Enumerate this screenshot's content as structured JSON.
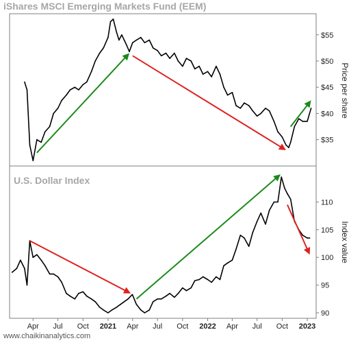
{
  "chart_data": [
    {
      "type": "line",
      "title": "iShares MSCI Emerging Markets Fund (EEM)",
      "ylabel": "Price per share",
      "ylim": [
        30.5,
        58.5
      ],
      "yticks": [
        35,
        40,
        45,
        50,
        55
      ],
      "ytick_labels": [
        "$35",
        "$40",
        "$45",
        "$50",
        "$55"
      ],
      "grid": false,
      "series": [
        {
          "x": [
            "2020-03-01",
            "2020-03-10",
            "2020-03-20",
            "2020-04-01",
            "2020-04-15",
            "2020-05-01",
            "2020-05-15",
            "2020-06-01",
            "2020-06-15",
            "2020-07-01",
            "2020-07-15",
            "2020-08-01",
            "2020-08-15",
            "2020-09-01",
            "2020-09-15",
            "2020-10-01",
            "2020-10-15",
            "2020-11-01",
            "2020-11-15",
            "2020-12-01",
            "2020-12-15",
            "2021-01-01",
            "2021-01-10",
            "2021-01-20",
            "2021-02-01",
            "2021-02-10",
            "2021-02-20",
            "2021-03-01",
            "2021-03-10",
            "2021-03-20",
            "2021-04-01",
            "2021-04-15",
            "2021-05-01",
            "2021-05-15",
            "2021-06-01",
            "2021-06-15",
            "2021-07-01",
            "2021-07-15",
            "2021-08-01",
            "2021-08-15",
            "2021-09-01",
            "2021-09-15",
            "2021-10-01",
            "2021-10-15",
            "2021-11-01",
            "2021-11-15",
            "2021-12-01",
            "2021-12-15",
            "2022-01-01",
            "2022-01-15",
            "2022-02-01",
            "2022-02-15",
            "2022-03-01",
            "2022-03-15",
            "2022-04-01",
            "2022-04-15",
            "2022-05-01",
            "2022-05-15",
            "2022-06-01",
            "2022-06-15",
            "2022-07-01",
            "2022-07-15",
            "2022-08-01",
            "2022-08-15",
            "2022-09-01",
            "2022-09-15",
            "2022-10-01",
            "2022-10-15",
            "2022-10-25",
            "2022-11-01",
            "2022-11-15",
            "2022-12-01",
            "2022-12-15",
            "2023-01-01",
            "2023-01-15"
          ],
          "values": [
            46.0,
            44.5,
            34.0,
            31.0,
            35.0,
            34.5,
            36.5,
            37.5,
            40.0,
            41.0,
            42.5,
            43.5,
            44.5,
            45.0,
            44.5,
            45.5,
            46.0,
            48.0,
            50.0,
            51.5,
            52.5,
            54.5,
            57.5,
            58.0,
            55.5,
            54.0,
            55.0,
            54.0,
            53.0,
            51.8,
            53.5,
            54.0,
            54.5,
            53.5,
            54.0,
            52.5,
            52.0,
            51.0,
            51.5,
            50.5,
            51.5,
            50.0,
            49.0,
            50.5,
            50.0,
            48.5,
            49.0,
            47.5,
            48.0,
            47.0,
            49.0,
            47.5,
            45.0,
            43.5,
            44.0,
            41.5,
            41.0,
            42.0,
            41.5,
            40.5,
            39.5,
            40.0,
            41.0,
            40.5,
            38.5,
            36.5,
            35.5,
            34.0,
            33.5,
            34.5,
            37.5,
            39.0,
            38.5,
            38.5,
            41.0
          ]
        }
      ],
      "annotations": [
        {
          "type": "arrow",
          "color": "#1a8a1a",
          "from": [
            "2020-04-15",
            32.5
          ],
          "to": [
            "2021-03-20",
            51.5
          ]
        },
        {
          "type": "arrow",
          "color": "#e02020",
          "from": [
            "2021-04-01",
            51.0
          ],
          "to": [
            "2022-10-15",
            33.0
          ]
        },
        {
          "type": "arrow",
          "color": "#1a8a1a",
          "from": [
            "2022-11-01",
            37.5
          ],
          "to": [
            "2023-01-15",
            42.5
          ]
        }
      ]
    },
    {
      "type": "line",
      "title": "U.S. Dollar Index",
      "ylabel": "Index value",
      "ylim": [
        89.5,
        116
      ],
      "yticks": [
        90,
        95,
        100,
        105,
        110
      ],
      "ytick_labels": [
        "90",
        "95",
        "100",
        "105",
        "110"
      ],
      "grid": false,
      "xticks": [
        "2020-04-01",
        "2020-07-01",
        "2020-10-01",
        "2021-01-01",
        "2021-04-01",
        "2021-07-01",
        "2021-10-01",
        "2022-01-01",
        "2022-04-01",
        "2022-07-01",
        "2022-10-01",
        "2023-01-01"
      ],
      "xtick_labels": [
        "Apr",
        "Jul",
        "Oct",
        "2021",
        "Apr",
        "Jul",
        "Oct",
        "2022",
        "Apr",
        "Jul",
        "Oct",
        "2023"
      ],
      "series": [
        {
          "x": [
            "2020-01-15",
            "2020-02-01",
            "2020-02-15",
            "2020-03-01",
            "2020-03-10",
            "2020-03-20",
            "2020-04-01",
            "2020-04-15",
            "2020-05-01",
            "2020-05-15",
            "2020-06-01",
            "2020-06-15",
            "2020-07-01",
            "2020-07-15",
            "2020-08-01",
            "2020-08-15",
            "2020-09-01",
            "2020-09-15",
            "2020-10-01",
            "2020-10-15",
            "2020-11-01",
            "2020-11-15",
            "2020-12-01",
            "2020-12-15",
            "2021-01-01",
            "2021-01-15",
            "2021-02-01",
            "2021-02-15",
            "2021-03-01",
            "2021-03-15",
            "2021-03-31",
            "2021-04-15",
            "2021-05-01",
            "2021-05-15",
            "2021-06-01",
            "2021-06-15",
            "2021-07-01",
            "2021-07-15",
            "2021-08-01",
            "2021-08-15",
            "2021-09-01",
            "2021-09-15",
            "2021-10-01",
            "2021-10-15",
            "2021-11-01",
            "2021-11-15",
            "2021-12-01",
            "2021-12-15",
            "2022-01-01",
            "2022-01-15",
            "2022-02-01",
            "2022-02-15",
            "2022-03-01",
            "2022-03-15",
            "2022-04-01",
            "2022-04-15",
            "2022-05-01",
            "2022-05-15",
            "2022-06-01",
            "2022-06-15",
            "2022-07-01",
            "2022-07-15",
            "2022-08-01",
            "2022-08-15",
            "2022-09-01",
            "2022-09-15",
            "2022-09-28",
            "2022-10-10",
            "2022-10-20",
            "2022-11-01",
            "2022-11-15",
            "2022-12-01",
            "2022-12-15",
            "2023-01-01",
            "2023-01-10"
          ],
          "values": [
            97.3,
            98.0,
            99.5,
            98.0,
            95.0,
            103.0,
            100.0,
            100.5,
            99.5,
            98.5,
            97.0,
            97.0,
            96.5,
            95.5,
            93.5,
            93.0,
            92.5,
            93.5,
            93.8,
            93.0,
            92.5,
            92.0,
            91.0,
            90.5,
            90.0,
            90.5,
            91.0,
            91.5,
            92.0,
            92.5,
            93.3,
            91.5,
            90.5,
            90.0,
            90.5,
            92.0,
            92.5,
            92.5,
            93.0,
            93.5,
            92.8,
            93.5,
            94.5,
            94.0,
            94.5,
            95.8,
            96.0,
            96.5,
            96.0,
            95.5,
            96.5,
            96.0,
            98.5,
            99.0,
            99.5,
            101.5,
            104.0,
            103.5,
            102.0,
            104.5,
            106.5,
            108.0,
            106.0,
            108.5,
            110.0,
            110.0,
            114.5,
            112.5,
            111.5,
            110.5,
            106.5,
            105.0,
            104.0,
            103.5,
            103.5
          ]
        }
      ],
      "annotations": [
        {
          "type": "arrow",
          "color": "#e02020",
          "from": [
            "2020-03-20",
            103.0
          ],
          "to": [
            "2021-03-25",
            93.5
          ]
        },
        {
          "type": "arrow",
          "color": "#1a8a1a",
          "from": [
            "2021-04-15",
            92.5
          ],
          "to": [
            "2022-09-25",
            115.0
          ]
        },
        {
          "type": "arrow",
          "color": "#e02020",
          "from": [
            "2022-10-20",
            109.5
          ],
          "to": [
            "2023-01-10",
            100.5
          ]
        }
      ]
    }
  ],
  "footer": {
    "source": "www.chaikinanalytics.com"
  }
}
